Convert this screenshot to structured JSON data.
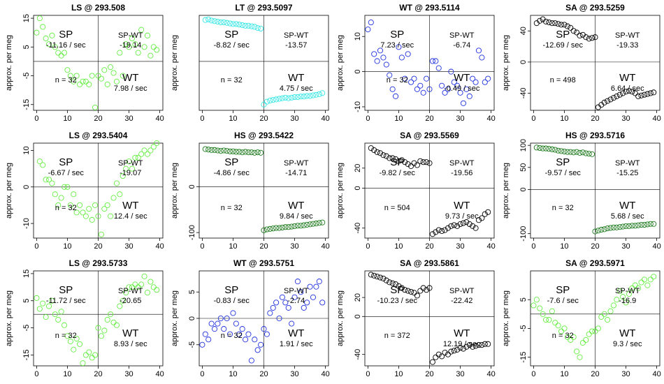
{
  "chart_data": [
    {
      "type": "scatter",
      "title": "LS @ 293.508",
      "ylabel": "approx. per meg",
      "color": "#66ee44",
      "xlim": [
        -1,
        41
      ],
      "ylim": [
        -17,
        16
      ],
      "yticks": [
        -15,
        -5,
        5,
        15
      ],
      "xticks": [
        0,
        10,
        20,
        30,
        40
      ],
      "labels": {
        "sp": "SP",
        "sp_rate": "-11.16 / sec",
        "spwt": "SP-WT",
        "spwt_val": "-19.14",
        "wt": "WT",
        "wt_rate": "7.98 / sec",
        "n": "n = 32"
      },
      "x": [
        0,
        1,
        2,
        3,
        4,
        5,
        6,
        7,
        8,
        9,
        10,
        11,
        12,
        13,
        14,
        15,
        16,
        17,
        18,
        19,
        20,
        21,
        22,
        23,
        24,
        25,
        26,
        27,
        28,
        29,
        30,
        31,
        32,
        33,
        34,
        35,
        36,
        37,
        38,
        39
      ],
      "y": [
        10,
        15,
        12,
        8,
        6,
        9,
        5,
        3,
        2,
        3,
        -3,
        -5,
        -7,
        -5,
        -8,
        -7,
        -7,
        -8,
        -5,
        -16,
        -5,
        -6,
        -3,
        -8,
        -2,
        -4,
        -7,
        3,
        -5,
        6,
        5,
        8,
        6,
        3,
        11,
        5,
        9,
        2,
        5,
        4
      ]
    },
    {
      "type": "scatter",
      "title": "LT @ 293.5097",
      "ylabel": "approx. per meg",
      "color": "#33e6e6",
      "xlim": [
        -1,
        41
      ],
      "ylim": [
        -85,
        80
      ],
      "yticks": [],
      "xticks": [
        0,
        10,
        20,
        30,
        40
      ],
      "labels": {
        "sp": "SP",
        "sp_rate": "-8.82 / sec",
        "spwt": "SP-WT",
        "spwt_val": "-13.57",
        "wt": "WT",
        "wt_rate": "4.75 / sec",
        "n": "n = 32"
      },
      "x": [
        1,
        2,
        3,
        4,
        5,
        6,
        7,
        8,
        9,
        10,
        11,
        12,
        13,
        14,
        15,
        16,
        17,
        18,
        19,
        20,
        21,
        22,
        23,
        24,
        25,
        26,
        27,
        28,
        29,
        30,
        31,
        32,
        33,
        34,
        35,
        36,
        37,
        38,
        39
      ],
      "y": [
        72,
        73,
        71,
        70,
        69,
        68,
        68,
        67,
        66,
        65,
        65,
        64,
        63,
        62,
        62,
        61,
        60,
        58,
        57,
        -75,
        -70,
        -68,
        -67,
        -66,
        -65,
        -64,
        -63,
        -64,
        -63,
        -62,
        -62,
        -61,
        -61,
        -60,
        -60,
        -59,
        -58,
        -57,
        -55
      ]
    },
    {
      "type": "scatter",
      "title": "WT @ 293.5114",
      "ylabel": "approx. per meg",
      "color": "#2233dd",
      "xlim": [
        -1,
        41
      ],
      "ylim": [
        -11,
        16
      ],
      "yticks": [
        -10,
        0,
        10
      ],
      "xticks": [
        0,
        10,
        20,
        30,
        40
      ],
      "labels": {
        "sp": "SP",
        "sp_rate": "7.23 / sec",
        "spwt": "SP-WT",
        "spwt_val": "-6.74",
        "wt": "WT",
        "wt_rate": "-0.49 / sec",
        "n": "n = 32"
      },
      "x": [
        0,
        1,
        2,
        3,
        4,
        5,
        6,
        7,
        8,
        9,
        10,
        11,
        12,
        13,
        14,
        15,
        16,
        17,
        18,
        19,
        20,
        21,
        22,
        23,
        24,
        25,
        26,
        27,
        28,
        29,
        30,
        31,
        32,
        33,
        34,
        35,
        36,
        37,
        38,
        39
      ],
      "y": [
        12,
        14,
        5,
        3,
        6,
        4,
        2,
        -1,
        -5,
        -7,
        7,
        4,
        -2,
        5,
        -3,
        -2,
        -5,
        -4,
        -6,
        -2,
        -5,
        3,
        3,
        1,
        -4,
        -6,
        -5,
        0,
        -3,
        -4,
        -6,
        -9,
        -5,
        -7,
        -2,
        -3,
        6,
        4,
        -3,
        -2
      ]
    },
    {
      "type": "scatter",
      "title": "SA @ 293.5259",
      "ylabel": "approx. per meg",
      "color": "#000000",
      "xlim": [
        -1,
        41
      ],
      "ylim": [
        -62,
        60
      ],
      "yticks": [
        -40,
        0,
        40
      ],
      "xticks": [
        0,
        10,
        20,
        30,
        40
      ],
      "labels": {
        "sp": "SP",
        "sp_rate": "-12.69 / sec",
        "spwt": "SP-WT",
        "spwt_val": "-19.33",
        "wt": "WT",
        "wt_rate": "6.64 / sec",
        "n": "n = 498"
      },
      "x": [
        1,
        2,
        3,
        4,
        5,
        6,
        7,
        8,
        9,
        10,
        11,
        12,
        13,
        14,
        15,
        16,
        17,
        18,
        19,
        20,
        21,
        22,
        23,
        24,
        25,
        26,
        27,
        28,
        29,
        30,
        31,
        32,
        33,
        34,
        35,
        36,
        37,
        38,
        39
      ],
      "y": [
        50,
        53,
        55,
        52,
        51,
        50,
        50,
        49,
        48,
        48,
        46,
        44,
        40,
        38,
        34,
        35,
        32,
        30,
        31,
        32,
        -58,
        -55,
        -52,
        -50,
        -48,
        -46,
        -44,
        -42,
        -40,
        -38,
        -37,
        -38,
        -40,
        -44,
        -43,
        -42,
        -41,
        -40,
        -39
      ]
    },
    {
      "type": "scatter",
      "title": "LS @ 293.5404",
      "ylabel": "approx. per meg",
      "color": "#66ee44",
      "xlim": [
        -1,
        41
      ],
      "ylim": [
        -14,
        12
      ],
      "yticks": [
        -10,
        0,
        10
      ],
      "xticks": [
        0,
        10,
        20,
        30,
        40
      ],
      "labels": {
        "sp": "SP",
        "sp_rate": "-6.67 / sec",
        "spwt": "SP-WT",
        "spwt_val": "-19.07",
        "wt": "WT",
        "wt_rate": "12.4 / sec",
        "n": "n = 32"
      },
      "x": [
        1,
        2,
        3,
        4,
        5,
        6,
        7,
        8,
        9,
        10,
        11,
        12,
        13,
        14,
        15,
        16,
        17,
        18,
        19,
        20,
        21,
        22,
        23,
        24,
        25,
        26,
        27,
        28,
        29,
        30,
        31,
        32,
        33,
        34,
        35,
        36,
        37,
        38,
        39
      ],
      "y": [
        7,
        6,
        2,
        2,
        1,
        -2,
        -5,
        -3,
        0,
        0,
        -5,
        -2,
        -7,
        -5,
        -7,
        -8,
        -6,
        -9,
        -5,
        -8,
        -13,
        -6,
        -5,
        -8,
        -3,
        1,
        -2,
        3,
        5,
        7,
        5,
        8,
        8,
        9,
        10,
        9,
        10,
        11,
        12
      ]
    },
    {
      "type": "scatter",
      "title": "HS @ 293.5422",
      "ylabel": "approx. per meg",
      "color": "#1e7a1e",
      "xlim": [
        -1,
        41
      ],
      "ylim": [
        -112,
        95
      ],
      "yticks": [
        -100,
        0
      ],
      "xticks": [
        0,
        10,
        20,
        30,
        40
      ],
      "labels": {
        "sp": "SP",
        "sp_rate": "-4.86 / sec",
        "spwt": "SP-WT",
        "spwt_val": "-14.71",
        "wt": "WT",
        "wt_rate": "9.84 / sec",
        "n": "n = 32"
      },
      "x": [
        1,
        2,
        3,
        4,
        5,
        6,
        7,
        8,
        9,
        10,
        11,
        12,
        13,
        14,
        15,
        16,
        17,
        18,
        19,
        20,
        21,
        22,
        23,
        24,
        25,
        26,
        27,
        28,
        29,
        30,
        31,
        32,
        33,
        34,
        35,
        36,
        37,
        38,
        39
      ],
      "y": [
        82,
        81,
        80,
        80,
        79,
        78,
        79,
        78,
        77,
        77,
        76,
        76,
        75,
        76,
        75,
        75,
        74,
        75,
        74,
        -95,
        -93,
        -92,
        -91,
        -90,
        -90,
        -89,
        -88,
        -88,
        -87,
        -86,
        -85,
        -85,
        -84,
        -83,
        -82,
        -81,
        -80,
        -79,
        -78
      ]
    },
    {
      "type": "scatter",
      "title": "SA @ 293.5569",
      "ylabel": "approx. per meg",
      "color": "#000000",
      "xlim": [
        -1,
        41
      ],
      "ylim": [
        -50,
        45
      ],
      "yticks": [
        -40,
        0,
        20
      ],
      "xticks": [
        0,
        10,
        20,
        30,
        40
      ],
      "labels": {
        "sp": "SP",
        "sp_rate": "-9.82 / sec",
        "spwt": "SP-WT",
        "spwt_val": "-19.56",
        "wt": "WT",
        "wt_rate": "9.73 / sec",
        "n": "n = 504"
      },
      "x": [
        1,
        2,
        3,
        4,
        5,
        6,
        7,
        8,
        9,
        10,
        11,
        12,
        13,
        14,
        15,
        16,
        17,
        18,
        19,
        20,
        21,
        22,
        23,
        24,
        25,
        26,
        27,
        28,
        29,
        30,
        31,
        32,
        33,
        34,
        35,
        36,
        37,
        38,
        39
      ],
      "y": [
        40,
        38,
        36,
        35,
        33,
        32,
        30,
        30,
        29,
        27,
        28,
        26,
        24,
        22,
        25,
        23,
        27,
        26,
        26,
        25,
        -46,
        -44,
        -42,
        -43,
        -42,
        -40,
        -38,
        -37,
        -38,
        -36,
        -35,
        -34,
        -36,
        -38,
        -40,
        -32,
        -30,
        -26,
        -24
      ]
    },
    {
      "type": "scatter",
      "title": "HS @ 293.5716",
      "ylabel": "approx. per meg",
      "color": "#1e7a1e",
      "xlim": [
        -1,
        41
      ],
      "ylim": [
        -110,
        105
      ],
      "yticks": [
        -100,
        0,
        50,
        100
      ],
      "xticks": [
        0,
        10,
        20,
        30,
        40
      ],
      "labels": {
        "sp": "SP",
        "sp_rate": "-9.57 / sec",
        "spwt": "SP-WT",
        "spwt_val": "-15.25",
        "wt": "WT",
        "wt_rate": "5.68 / sec",
        "n": "n = 32"
      },
      "x": [
        1,
        2,
        3,
        4,
        5,
        6,
        7,
        8,
        9,
        10,
        11,
        12,
        13,
        14,
        15,
        16,
        17,
        18,
        19,
        20,
        21,
        22,
        23,
        24,
        25,
        26,
        27,
        28,
        29,
        30,
        31,
        32,
        33,
        34,
        35,
        36,
        37,
        38,
        39
      ],
      "y": [
        95,
        94,
        93,
        93,
        92,
        91,
        90,
        88,
        87,
        86,
        85,
        85,
        84,
        85,
        83,
        84,
        82,
        81,
        80,
        -95,
        -93,
        -91,
        -90,
        -88,
        -87,
        -86,
        -86,
        -85,
        -84,
        -83,
        -83,
        -82,
        -82,
        -81,
        -80,
        -80,
        -79,
        -78,
        -78
      ]
    },
    {
      "type": "scatter",
      "title": "LS @ 293.5733",
      "ylabel": "approx. per meg",
      "color": "#66ee44",
      "xlim": [
        -1,
        41
      ],
      "ylim": [
        -19,
        16
      ],
      "yticks": [
        -15,
        -5,
        5,
        15
      ],
      "xticks": [
        0,
        10,
        20,
        30,
        40
      ],
      "labels": {
        "sp": "SP",
        "sp_rate": "-11.72 / sec",
        "spwt": "SP-WT",
        "spwt_val": "-20.65",
        "wt": "WT",
        "wt_rate": "8.93 / sec",
        "n": "n = 32"
      },
      "x": [
        0,
        1,
        2,
        3,
        4,
        5,
        6,
        7,
        8,
        9,
        10,
        11,
        12,
        13,
        14,
        15,
        16,
        17,
        18,
        19,
        20,
        21,
        22,
        23,
        24,
        25,
        26,
        27,
        28,
        29,
        30,
        31,
        32,
        33,
        34,
        35,
        36,
        37,
        38,
        39
      ],
      "y": [
        6,
        2,
        4,
        -1,
        3,
        5,
        0,
        -2,
        1,
        -4,
        -8,
        -10,
        -13,
        -9,
        -11,
        -18,
        -15,
        -14,
        -16,
        -15,
        -5,
        -8,
        -6,
        -2,
        0,
        -3,
        -4,
        3,
        5,
        8,
        10,
        10,
        11,
        10,
        11,
        14,
        8,
        12,
        10,
        9
      ]
    },
    {
      "type": "scatter",
      "title": "WT @ 293.5751",
      "ylabel": "approx. per meg",
      "color": "#2233dd",
      "xlim": [
        -1,
        41
      ],
      "ylim": [
        -9,
        9
      ],
      "yticks": [
        -5,
        0,
        5
      ],
      "xticks": [
        0,
        10,
        20,
        30,
        40
      ],
      "labels": {
        "sp": "SP",
        "sp_rate": "-0.83 / sec",
        "spwt": "SP-WT",
        "spwt_val": "-2.74",
        "wt": "WT",
        "wt_rate": "1.91 / sec",
        "n": "n = 32"
      },
      "x": [
        0,
        1,
        2,
        3,
        4,
        5,
        6,
        7,
        8,
        9,
        10,
        11,
        12,
        13,
        14,
        15,
        16,
        17,
        18,
        19,
        20,
        21,
        22,
        23,
        24,
        25,
        26,
        27,
        28,
        29,
        30,
        31,
        32,
        33,
        34,
        35,
        36,
        37,
        38,
        39
      ],
      "y": [
        -5,
        -3,
        -4,
        -1,
        -2,
        -1,
        0,
        -2,
        0,
        -3,
        1,
        -1,
        -3,
        -2,
        -4,
        -3,
        -8,
        -4,
        -6,
        -5,
        -2,
        -3,
        1,
        2,
        3,
        0,
        4,
        3,
        2,
        -1,
        4,
        7,
        5,
        2,
        3,
        6,
        4,
        6,
        7,
        3
      ]
    },
    {
      "type": "scatter",
      "title": "SA @ 293.5861",
      "ylabel": "approx. per meg",
      "color": "#000000",
      "xlim": [
        -1,
        41
      ],
      "ylim": [
        -52,
        48
      ],
      "yticks": [
        -40,
        0,
        20
      ],
      "xticks": [
        0,
        10,
        20,
        30,
        40
      ],
      "labels": {
        "sp": "SP",
        "sp_rate": "-10.23 / sec",
        "spwt": "SP-WT",
        "spwt_val": "-22.42",
        "wt": "WT",
        "wt_rate": "12.19 / sec",
        "n": "n = 372"
      },
      "x": [
        1,
        2,
        3,
        4,
        5,
        6,
        7,
        8,
        9,
        10,
        11,
        12,
        13,
        14,
        15,
        16,
        17,
        18,
        19,
        20,
        21,
        22,
        23,
        24,
        25,
        26,
        27,
        28,
        29,
        30,
        31,
        32,
        33,
        34,
        35,
        36,
        37,
        38,
        39
      ],
      "y": [
        44,
        43,
        42,
        41,
        40,
        38,
        36,
        35,
        34,
        32,
        30,
        28,
        27,
        26,
        25,
        22,
        27,
        30,
        28,
        30,
        -48,
        -43,
        -40,
        -42,
        -38,
        -40,
        -37,
        -36,
        -35,
        -33,
        -34,
        -32,
        -30,
        -32,
        -31,
        -30,
        -30,
        -29,
        -29
      ]
    },
    {
      "type": "scatter",
      "title": "SA @ 293.5971",
      "ylabel": "approx. per meg",
      "color": "#66ee44",
      "xlim": [
        -1,
        41
      ],
      "ylim": [
        -18,
        15
      ],
      "yticks": [
        -15,
        -5,
        5
      ],
      "xticks": [
        0,
        10,
        20,
        30,
        40
      ],
      "labels": {
        "sp": "SP",
        "sp_rate": "-7.6 / sec",
        "spwt": "SP-WT",
        "spwt_val": "-16.9",
        "wt": "WT",
        "wt_rate": "9.3 / sec",
        "n": "n = 32"
      },
      "x": [
        0,
        1,
        2,
        3,
        4,
        5,
        6,
        7,
        8,
        9,
        10,
        11,
        12,
        13,
        14,
        15,
        16,
        17,
        18,
        19,
        20,
        21,
        22,
        23,
        24,
        25,
        26,
        27,
        28,
        29,
        30,
        31,
        32,
        33,
        34,
        35,
        36,
        37,
        38,
        39
      ],
      "y": [
        3,
        5,
        2,
        0,
        -2,
        -2,
        1,
        -3,
        -4,
        -6,
        -5,
        -8,
        -9,
        -8,
        -13,
        -15,
        -10,
        -9,
        -7,
        -6,
        -6,
        -5,
        -1,
        0,
        -2,
        1,
        3,
        5,
        8,
        6,
        4,
        7,
        9,
        10,
        9,
        11,
        12,
        10,
        12,
        13
      ]
    }
  ]
}
